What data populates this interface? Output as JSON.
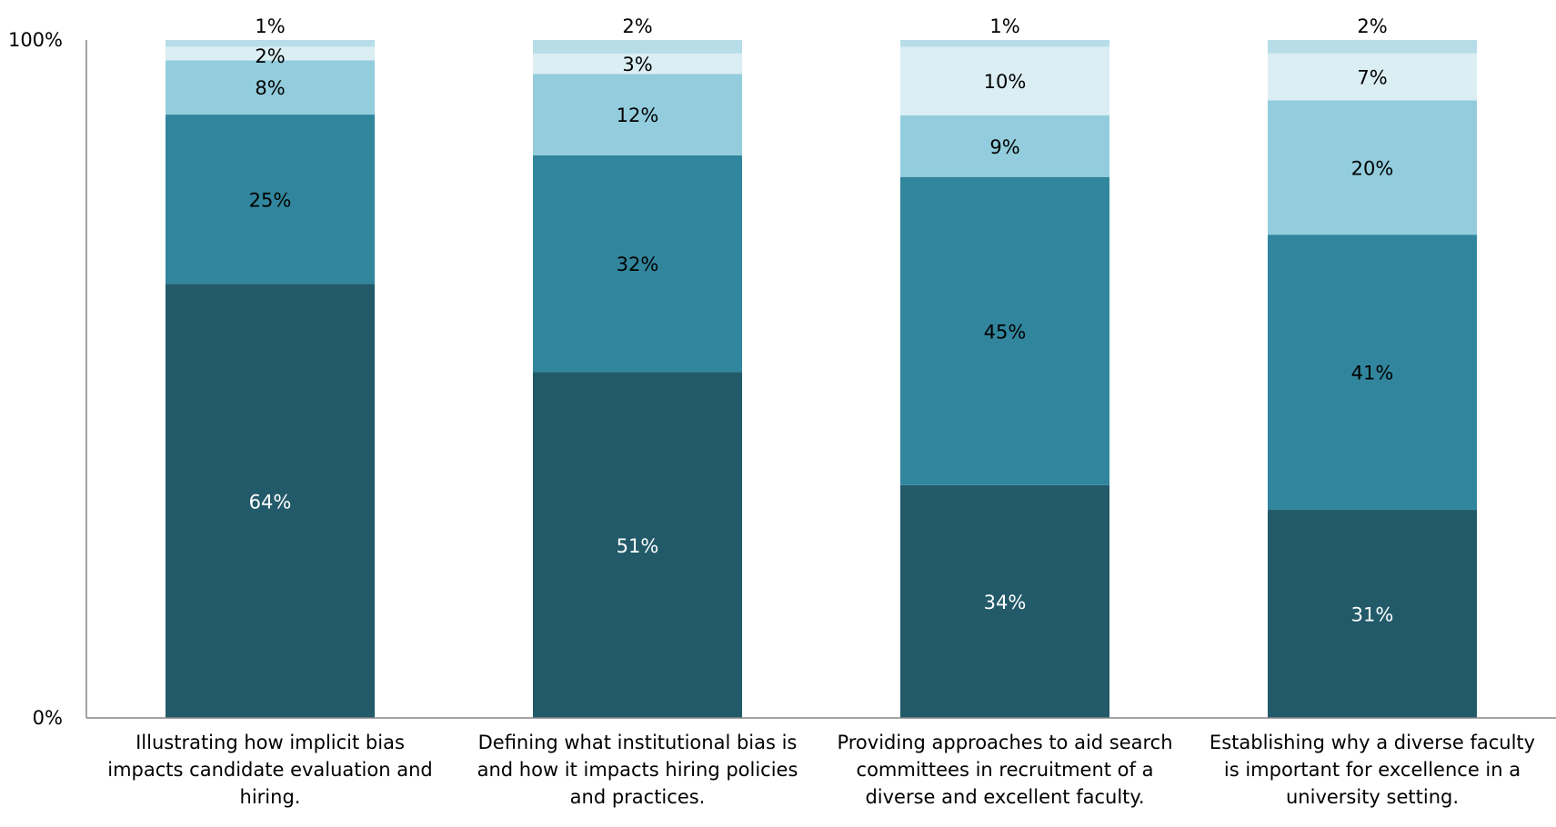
{
  "chart_data": {
    "type": "bar",
    "stacked": true,
    "percent_stacked": true,
    "categories": [
      "Illustrating how implicit bias impacts candidate evaluation and hiring.",
      "Defining what institutional bias is and how it impacts hiring policies and practices.",
      "Providing approaches to aid search committees in recruitment of a diverse and excellent faculty.",
      "Establishing why a diverse faculty is important for excellence in a university setting."
    ],
    "series": [
      {
        "color": "#225A69",
        "label_color": "#FFFFFF",
        "values": [
          64,
          51,
          34,
          31
        ]
      },
      {
        "color": "#31869D",
        "label_color": "#000000",
        "values": [
          25,
          32,
          45,
          41
        ]
      },
      {
        "color": "#93CDDD",
        "label_color": "#000000",
        "values": [
          8,
          12,
          9,
          20
        ]
      },
      {
        "color": "#DAEEF3",
        "label_color": "#000000",
        "values": [
          2,
          3,
          10,
          7
        ]
      },
      {
        "color": "#B7DEE8",
        "label_color": "#000000",
        "values": [
          1,
          2,
          1,
          2
        ]
      }
    ],
    "ylim": [
      0,
      100
    ],
    "y_ticks": [
      "0%",
      "100%"
    ],
    "grid": false,
    "legend": "none",
    "title": "",
    "xlabel": "",
    "ylabel": ""
  }
}
